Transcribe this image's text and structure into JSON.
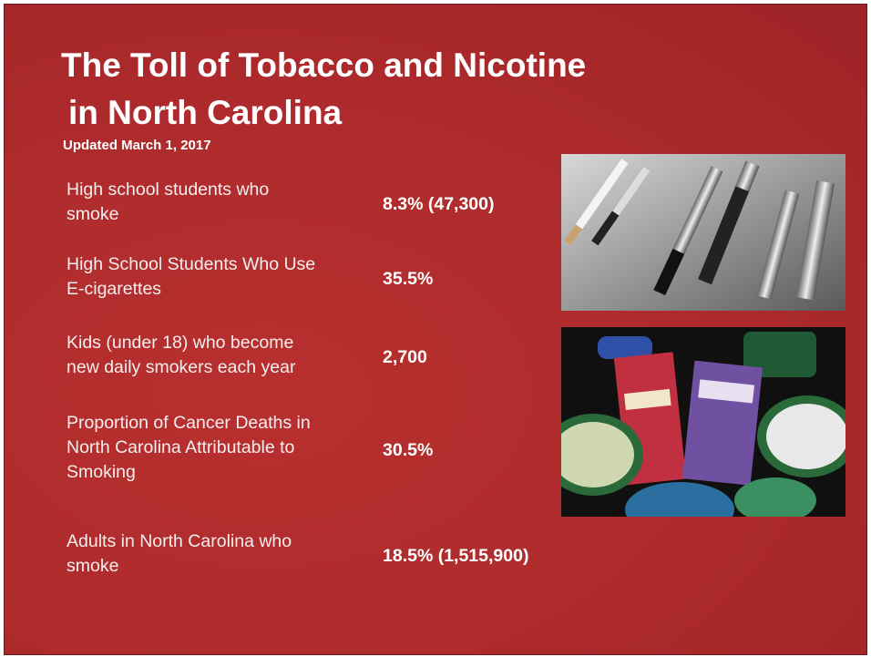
{
  "header": {
    "title_lines": [
      "The Toll of Tobacco and Nicotine",
      "in North Carolina"
    ],
    "subtitle": "Updated March 1, 2017"
  },
  "rows": [
    {
      "label_lines": [
        "High school students who",
        "smoke"
      ],
      "value": "8.3% (47,300)"
    },
    {
      "label_lines": [
        "High School Students Who Use",
        "E-cigarettes"
      ],
      "value": "35.5%"
    },
    {
      "label_lines": [
        "Kids (under 18) who become",
        "new daily smokers each year"
      ],
      "value": "2,700"
    },
    {
      "label_lines": [
        "Proportion of Cancer Deaths in",
        "North Carolina Attributable to",
        "Smoking"
      ],
      "value": "30.5%"
    },
    {
      "label_lines": [
        "Adults in North Carolina who",
        "smoke"
      ],
      "value": "18.5% (1,515,900)"
    }
  ]
}
